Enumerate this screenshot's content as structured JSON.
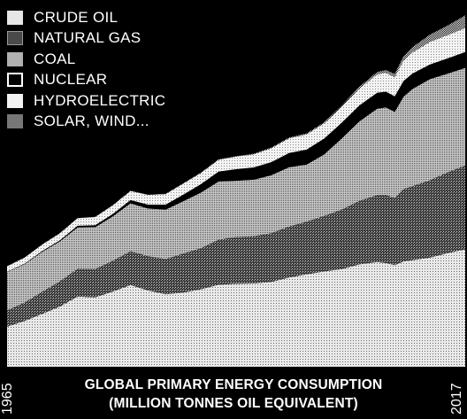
{
  "chart_data": {
    "type": "area",
    "stacked": true,
    "title": "GLOBAL PRIMARY ENERGY CONSUMPTION",
    "subtitle": "(MILLION TONNES OIL EQUIVALENT)",
    "x_start_label": "1965",
    "x_end_label": "2017",
    "x": [
      1965,
      1967,
      1969,
      1971,
      1973,
      1975,
      1977,
      1979,
      1981,
      1983,
      1985,
      1987,
      1989,
      1991,
      1993,
      1995,
      1997,
      1999,
      2001,
      2003,
      2005,
      2007,
      2008,
      2009,
      2010,
      2011,
      2013,
      2015,
      2017
    ],
    "ylim": [
      0,
      14000
    ],
    "legend_position": "top-left",
    "series": [
      {
        "name": "CRUDE OIL",
        "color": "#d8d8d8",
        "pattern": "fine-dots-light",
        "values": [
          1530,
          1750,
          2020,
          2300,
          2680,
          2650,
          2870,
          3120,
          2910,
          2770,
          2830,
          2960,
          3130,
          3170,
          3180,
          3240,
          3410,
          3530,
          3640,
          3730,
          3910,
          4000,
          3960,
          3880,
          4020,
          4070,
          4170,
          4340,
          4480
        ]
      },
      {
        "name": "NATURAL GAS",
        "color": "#555555",
        "pattern": "dots-dark",
        "values": [
          620,
          700,
          840,
          960,
          1060,
          1080,
          1170,
          1290,
          1310,
          1340,
          1490,
          1560,
          1720,
          1780,
          1800,
          1860,
          1940,
          2010,
          2120,
          2270,
          2420,
          2550,
          2600,
          2560,
          2760,
          2820,
          2950,
          3080,
          3200
        ]
      },
      {
        "name": "COAL",
        "color": "#a9a9a9",
        "pattern": "dots-medium",
        "values": [
          1470,
          1470,
          1530,
          1530,
          1580,
          1600,
          1700,
          1830,
          1820,
          1890,
          2000,
          2130,
          2220,
          2150,
          2160,
          2210,
          2270,
          2180,
          2350,
          2720,
          3040,
          3300,
          3340,
          3290,
          3530,
          3710,
          3860,
          3770,
          3730
        ]
      },
      {
        "name": "NUCLEAR",
        "color": "#000000",
        "pattern": "solid",
        "values": [
          6,
          15,
          25,
          40,
          60,
          75,
          90,
          120,
          150,
          190,
          250,
          320,
          380,
          440,
          470,
          500,
          540,
          570,
          600,
          600,
          610,
          610,
          600,
          590,
          600,
          590,
          560,
          580,
          600
        ]
      },
      {
        "name": "HYDROELECTRIC",
        "color": "#e6e6e6",
        "pattern": "light-dots",
        "values": [
          210,
          230,
          250,
          270,
          290,
          310,
          330,
          350,
          370,
          400,
          420,
          430,
          450,
          480,
          500,
          530,
          560,
          580,
          580,
          600,
          650,
          700,
          720,
          730,
          780,
          800,
          860,
          890,
          920
        ]
      },
      {
        "name": "SOLAR, WIND...",
        "color": "#7a7a7a",
        "pattern": "checker",
        "values": [
          5,
          5,
          5,
          6,
          6,
          7,
          7,
          8,
          9,
          10,
          12,
          14,
          16,
          20,
          24,
          28,
          32,
          40,
          45,
          55,
          70,
          90,
          110,
          130,
          170,
          210,
          280,
          370,
          480
        ]
      }
    ]
  }
}
